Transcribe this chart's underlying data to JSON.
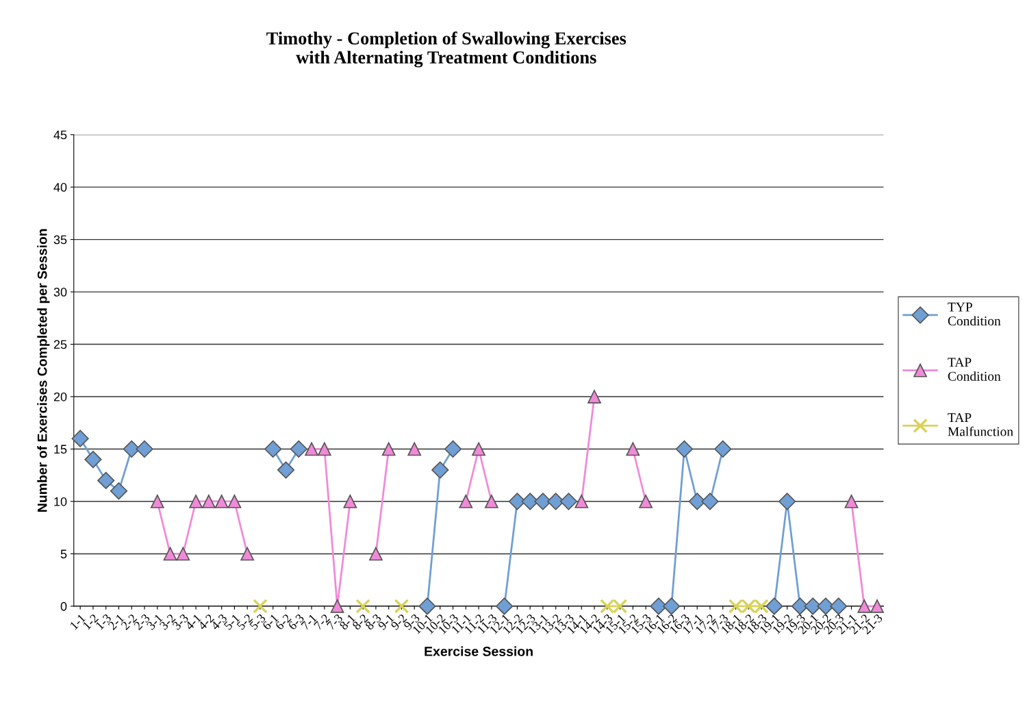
{
  "chart_data": {
    "type": "line",
    "title": "Timothy - Completion of Swallowing Exercises\nwith Alternating Treatment Conditions",
    "xlabel": "Exercise Session",
    "ylabel": "Number of Exercises Completed per Session",
    "categories": [
      "1-1",
      "1-2",
      "1-3",
      "2-1",
      "2-2",
      "2-3",
      "3-1",
      "3-2",
      "3-3",
      "4-1",
      "4-2",
      "4-3",
      "5-1",
      "5-2",
      "5-3",
      "6-1",
      "6-2",
      "6-3",
      "7-1",
      "7-2",
      "7-3",
      "8-1",
      "8-2",
      "8-3",
      "9-1",
      "9-2",
      "9-3",
      "10-1",
      "10-2",
      "10-3",
      "11-1",
      "11-2",
      "11-3",
      "12-1",
      "12-2",
      "12-3",
      "13-1",
      "13-2",
      "13-3",
      "14-1",
      "14-2",
      "14-3",
      "15-1",
      "15-2",
      "15-3",
      "16-1",
      "16-2",
      "16-3",
      "17-1",
      "17-2",
      "17-3",
      "18-1",
      "18-2",
      "18-3",
      "19-1",
      "19-2",
      "19-3",
      "20-1",
      "20-2",
      "20-3",
      "21-1",
      "21-2",
      "21-3"
    ],
    "series": [
      {
        "name": "TYP Condition",
        "color": "#6f9fd4",
        "marker": "diamond",
        "values": [
          16,
          14,
          12,
          11,
          15,
          15,
          null,
          null,
          null,
          null,
          null,
          null,
          null,
          null,
          null,
          15,
          13,
          15,
          null,
          null,
          null,
          null,
          null,
          null,
          null,
          null,
          null,
          0,
          13,
          15,
          null,
          null,
          null,
          0,
          10,
          10,
          10,
          10,
          10,
          null,
          null,
          null,
          null,
          null,
          null,
          0,
          0,
          15,
          10,
          10,
          15,
          null,
          null,
          null,
          0,
          10,
          0,
          0,
          0,
          0,
          null,
          null,
          null
        ]
      },
      {
        "name": "TAP Condition",
        "color": "#f08ad8",
        "marker": "triangle",
        "values": [
          null,
          null,
          null,
          null,
          null,
          null,
          10,
          5,
          5,
          10,
          10,
          10,
          10,
          5,
          null,
          null,
          null,
          null,
          15,
          15,
          0,
          10,
          null,
          5,
          15,
          null,
          15,
          null,
          null,
          null,
          10,
          15,
          10,
          null,
          null,
          null,
          null,
          null,
          null,
          10,
          20,
          null,
          null,
          15,
          10,
          null,
          null,
          null,
          null,
          null,
          null,
          null,
          null,
          null,
          null,
          null,
          null,
          null,
          null,
          null,
          10,
          0,
          0
        ]
      },
      {
        "name": "TAP Malfunction",
        "color": "#d8d25a",
        "marker": "cross",
        "values": [
          null,
          null,
          null,
          null,
          null,
          null,
          null,
          null,
          null,
          null,
          null,
          null,
          null,
          null,
          0,
          null,
          null,
          null,
          null,
          null,
          null,
          null,
          0,
          null,
          null,
          0,
          null,
          null,
          null,
          null,
          null,
          null,
          null,
          null,
          null,
          null,
          null,
          null,
          null,
          null,
          null,
          0,
          0,
          null,
          null,
          null,
          null,
          null,
          null,
          null,
          null,
          0,
          0,
          0,
          null,
          null,
          null,
          null,
          null,
          null,
          null,
          null,
          null
        ]
      }
    ],
    "ylim": [
      0,
      45
    ],
    "yticks": [
      0,
      5,
      10,
      15,
      20,
      25,
      30,
      35,
      40,
      45
    ],
    "grid": "y",
    "legend": "right"
  }
}
